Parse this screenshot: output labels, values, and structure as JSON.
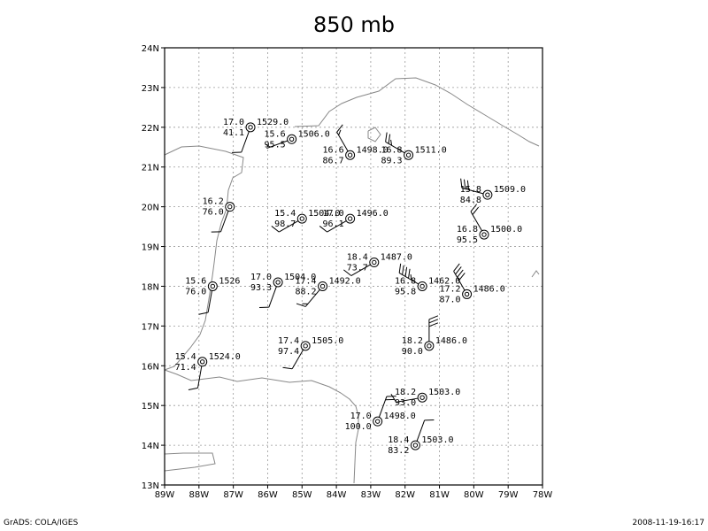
{
  "title": "850 mb",
  "footer": {
    "left": "GrADS: COLA/IGES",
    "right": "2008-11-19-16:17"
  },
  "axes": {
    "lon_range": [
      -89,
      -78
    ],
    "lat_range": [
      13,
      24
    ],
    "x_ticks": [
      "89W",
      "88W",
      "87W",
      "86W",
      "85W",
      "84W",
      "83W",
      "82W",
      "81W",
      "80W",
      "79W",
      "78W"
    ],
    "y_ticks": [
      "13N",
      "14N",
      "15N",
      "16N",
      "17N",
      "18N",
      "19N",
      "20N",
      "21N",
      "22N",
      "23N",
      "24N"
    ]
  },
  "stations": [
    {
      "lon": -86.5,
      "lat": 22.0,
      "temp": "17.0",
      "rh": "41.1",
      "hgt": "1529.0",
      "dir": 200,
      "spd": 10
    },
    {
      "lon": -85.3,
      "lat": 21.7,
      "temp": "15.6",
      "rh": "95.5",
      "hgt": "1506.0",
      "dir": 250,
      "spd": 5
    },
    {
      "lon": -83.6,
      "lat": 21.3,
      "temp": "16.6",
      "rh": "86.7",
      "hgt": "1498.0",
      "dir": 330,
      "spd": 15
    },
    {
      "lon": -81.9,
      "lat": 21.3,
      "temp": "16.8",
      "rh": "89.3",
      "hgt": "1511.0",
      "dir": 300,
      "spd": 25
    },
    {
      "lon": -87.1,
      "lat": 20.0,
      "temp": "16.2",
      "rh": "76.0",
      "hgt": "",
      "dir": 200,
      "spd": 10
    },
    {
      "lon": -85.0,
      "lat": 19.7,
      "temp": "15.4",
      "rh": "98.7",
      "hgt": "1504.0",
      "dir": 240,
      "spd": 10
    },
    {
      "lon": -83.6,
      "lat": 19.7,
      "temp": "17.0",
      "rh": "96.1",
      "hgt": "1496.0",
      "dir": 240,
      "spd": 10
    },
    {
      "lon": -79.6,
      "lat": 20.3,
      "temp": "15.8",
      "rh": "84.8",
      "hgt": "1509.0",
      "dir": 285,
      "spd": 30
    },
    {
      "lon": -79.7,
      "lat": 19.3,
      "temp": "16.8",
      "rh": "95.5",
      "hgt": "1500.0",
      "dir": 330,
      "spd": 20
    },
    {
      "lon": -82.9,
      "lat": 18.6,
      "temp": "18.4",
      "rh": "73.7",
      "hgt": "1487.0",
      "dir": 240,
      "spd": 10
    },
    {
      "lon": -87.6,
      "lat": 18.0,
      "temp": "15.6",
      "rh": "76.0",
      "hgt": "1526",
      "dir": 190,
      "spd": 10
    },
    {
      "lon": -85.7,
      "lat": 18.1,
      "temp": "17.0",
      "rh": "93.3",
      "hgt": "1504.0",
      "dir": 200,
      "spd": 10
    },
    {
      "lon": -84.4,
      "lat": 18.0,
      "temp": "17.4",
      "rh": "88.2",
      "hgt": "1492.0",
      "dir": 220,
      "spd": 15
    },
    {
      "lon": -81.5,
      "lat": 18.0,
      "temp": "16.8",
      "rh": "95.8",
      "hgt": "1462.0",
      "dir": 300,
      "spd": 45
    },
    {
      "lon": -80.2,
      "lat": 17.8,
      "temp": "17.2",
      "rh": "87.0",
      "hgt": "1486.0",
      "dir": 330,
      "spd": 40
    },
    {
      "lon": -84.9,
      "lat": 16.5,
      "temp": "17.4",
      "rh": "97.4",
      "hgt": "1505.0",
      "dir": 210,
      "spd": 10
    },
    {
      "lon": -81.3,
      "lat": 16.5,
      "temp": "18.2",
      "rh": "90.0",
      "hgt": "1486.0",
      "dir": 0,
      "spd": 30
    },
    {
      "lon": -87.9,
      "lat": 16.1,
      "temp": "15.4",
      "rh": "71.4",
      "hgt": "1524.0",
      "dir": 190,
      "spd": 10
    },
    {
      "lon": -81.5,
      "lat": 15.2,
      "temp": "18.2",
      "rh": "93.0",
      "hgt": "1503.0",
      "dir": 260,
      "spd": 10
    },
    {
      "lon": -82.8,
      "lat": 14.6,
      "temp": "17.0",
      "rh": "100.0",
      "hgt": "1498.0",
      "dir": 20,
      "spd": 20
    },
    {
      "lon": -81.7,
      "lat": 14.0,
      "temp": "18.4",
      "rh": "83.2",
      "hgt": "1503.0",
      "dir": 20,
      "spd": 10
    }
  ]
}
